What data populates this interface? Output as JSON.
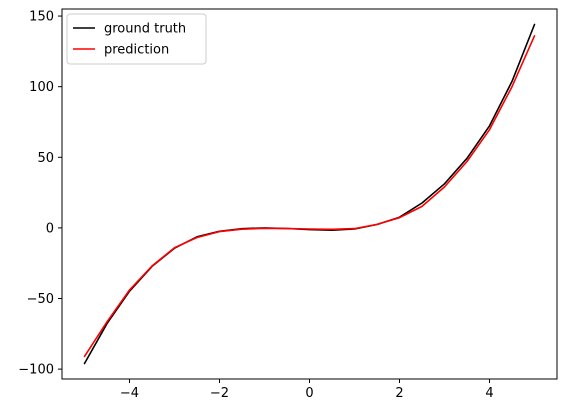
{
  "chart_data": {
    "type": "line",
    "title": "",
    "xlabel": "",
    "ylabel": "",
    "xlim": [
      -5.5,
      5.5
    ],
    "ylim": [
      -107,
      155
    ],
    "x_ticks": [
      {
        "value": -4,
        "label": "−4"
      },
      {
        "value": -2,
        "label": "−2"
      },
      {
        "value": 0,
        "label": "0"
      },
      {
        "value": 2,
        "label": "2"
      },
      {
        "value": 4,
        "label": "4"
      }
    ],
    "y_ticks": [
      {
        "value": -100,
        "label": "−100"
      },
      {
        "value": -50,
        "label": "−50"
      },
      {
        "value": 0,
        "label": "0"
      },
      {
        "value": 50,
        "label": "50"
      },
      {
        "value": 100,
        "label": "100"
      },
      {
        "value": 150,
        "label": "150"
      }
    ],
    "grid": false,
    "legend_position": "top-left",
    "series": [
      {
        "name": "ground truth",
        "color": "#000000",
        "x": [
          -5,
          -4.5,
          -4,
          -3.5,
          -3,
          -2.5,
          -2,
          -1.5,
          -1,
          -0.5,
          0,
          0.5,
          1,
          1.5,
          2,
          2.5,
          3,
          3.5,
          4,
          4.5,
          5
        ],
        "y": [
          -96,
          -67.8,
          -44.8,
          -27.3,
          -14.4,
          -6.3,
          -2.4,
          -0.6,
          0,
          -0.4,
          -1.2,
          -1.6,
          -0.8,
          2.4,
          7.6,
          17.6,
          31.2,
          49.3,
          72.2,
          103.7,
          144
        ]
      },
      {
        "name": "prediction",
        "color": "#ff0000",
        "x": [
          -5,
          -4.5,
          -4,
          -3.5,
          -3,
          -2.5,
          -2,
          -1.5,
          -1,
          -0.5,
          0,
          0.5,
          1,
          1.5,
          2,
          2.5,
          3,
          3.5,
          4,
          4.5,
          5
        ],
        "y": [
          -91,
          -66.5,
          -44,
          -27,
          -14,
          -6.8,
          -2.6,
          -0.9,
          -0.3,
          -0.5,
          -0.8,
          -1,
          -0.5,
          2.5,
          7.2,
          15.2,
          29,
          47,
          69.5,
          100,
          136
        ]
      }
    ]
  }
}
